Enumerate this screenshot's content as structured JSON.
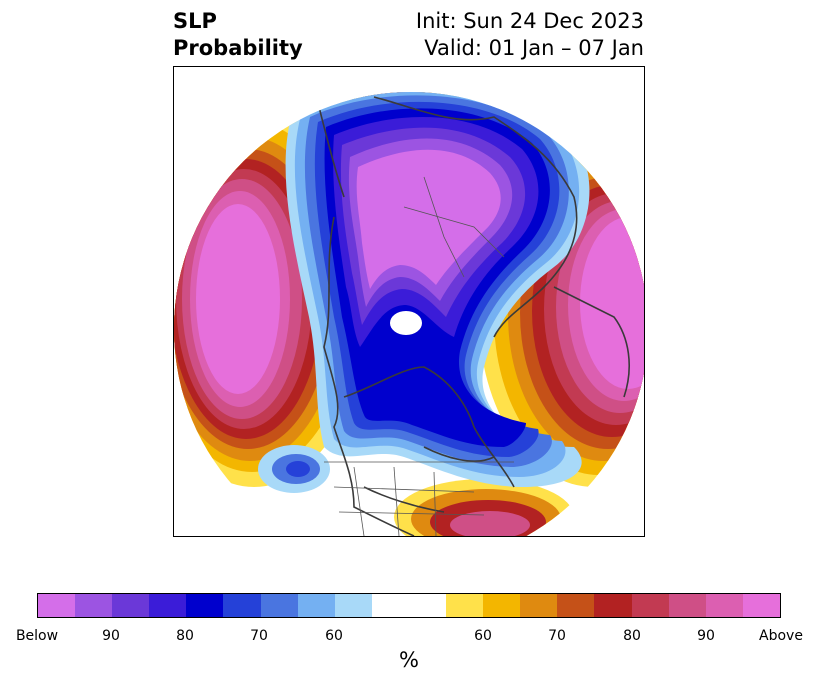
{
  "header": {
    "title_line1": "SLP",
    "title_line2": "Probability",
    "init_text": "Init: Sun 24 Dec 2023",
    "valid_text": "Valid: 01 Jan – 07 Jan"
  },
  "map": {
    "projection": "north-polar-stereographic",
    "features": [
      "coastlines",
      "country-borders",
      "us-state-borders"
    ]
  },
  "colorbar": {
    "unit": "%",
    "colors": [
      "#d46ee9",
      "#9c54e2",
      "#6b38d8",
      "#3b1cd8",
      "#0000cd",
      "#2541d8",
      "#4a75e0",
      "#74b0f2",
      "#a8d9f8",
      "#ffffff",
      "#ffffff",
      "#ffe14a",
      "#f3b600",
      "#df8a10",
      "#c55118",
      "#b22222",
      "#c23a52",
      "#cf4f86",
      "#dc5fb1",
      "#e66fdb"
    ],
    "tick_labels": [
      "Below",
      "90",
      "80",
      "70",
      "60",
      "60",
      "70",
      "80",
      "90",
      "Above"
    ]
  }
}
